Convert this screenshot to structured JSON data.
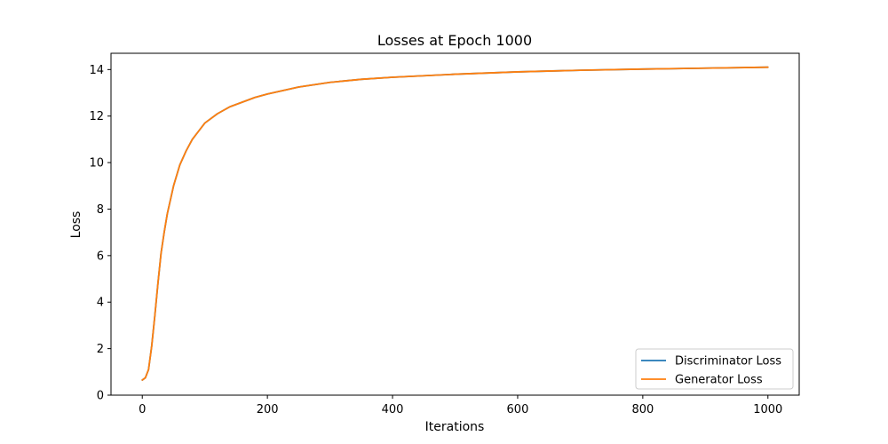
{
  "chart_data": {
    "type": "line",
    "title": "Losses at Epoch 1000",
    "xlabel": "Iterations",
    "ylabel": "Loss",
    "xlim": [
      -50,
      1050
    ],
    "ylim": [
      0,
      14.7
    ],
    "xticks": [
      0,
      200,
      400,
      600,
      800,
      1000
    ],
    "yticks": [
      0,
      2,
      4,
      6,
      8,
      10,
      12,
      14
    ],
    "grid": false,
    "legend": "lower-right",
    "series": [
      {
        "name": "Discriminator Loss",
        "color": "#1f77b4",
        "x": [
          0,
          5,
          10,
          15,
          20,
          25,
          30,
          35,
          40,
          50,
          60,
          70,
          80,
          90,
          100,
          120,
          140,
          160,
          180,
          200,
          250,
          300,
          350,
          400,
          500,
          600,
          700,
          800,
          900,
          1000
        ],
        "y": [
          0.65,
          0.75,
          1.1,
          2.1,
          3.4,
          4.8,
          6.1,
          7.0,
          7.8,
          9.0,
          9.9,
          10.5,
          11.0,
          11.35,
          11.7,
          12.1,
          12.4,
          12.6,
          12.8,
          12.95,
          13.25,
          13.45,
          13.58,
          13.67,
          13.8,
          13.9,
          13.97,
          14.02,
          14.06,
          14.1
        ]
      },
      {
        "name": "Generator Loss",
        "color": "#ff7f0e",
        "x": [
          0,
          5,
          10,
          15,
          20,
          25,
          30,
          35,
          40,
          50,
          60,
          70,
          80,
          90,
          100,
          120,
          140,
          160,
          180,
          200,
          250,
          300,
          350,
          400,
          500,
          600,
          700,
          800,
          900,
          1000
        ],
        "y": [
          0.65,
          0.75,
          1.1,
          2.1,
          3.4,
          4.8,
          6.1,
          7.0,
          7.8,
          9.0,
          9.9,
          10.5,
          11.0,
          11.35,
          11.7,
          12.1,
          12.4,
          12.6,
          12.8,
          12.95,
          13.25,
          13.45,
          13.58,
          13.67,
          13.8,
          13.9,
          13.97,
          14.02,
          14.06,
          14.1
        ]
      }
    ]
  }
}
